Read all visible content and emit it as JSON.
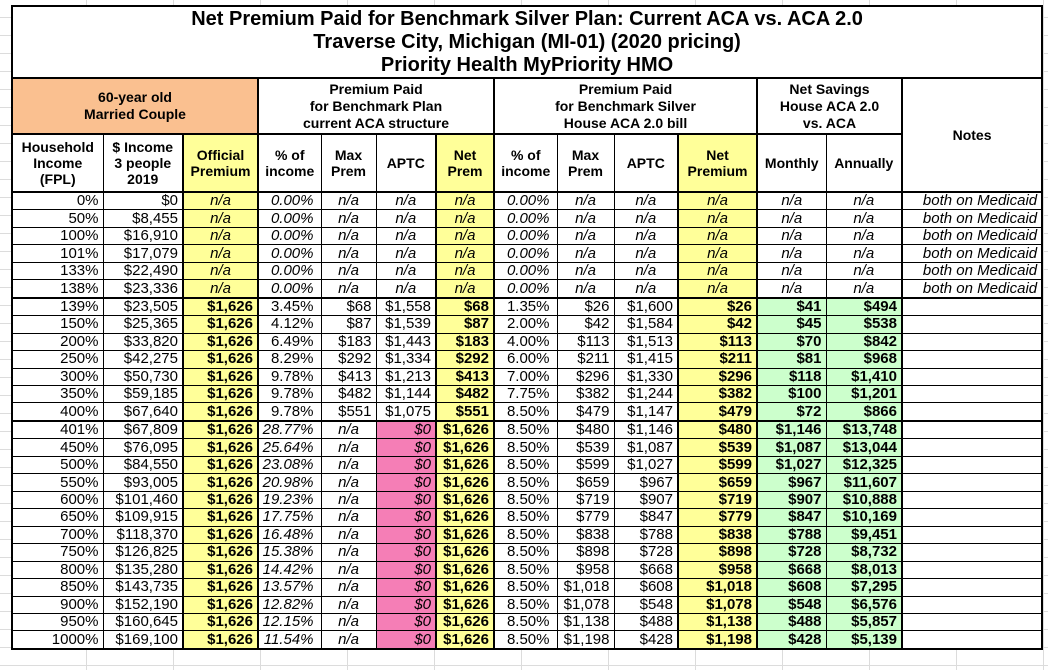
{
  "colors": {
    "header_orange": "#FAC090",
    "highlight_yellow": "#FFFF99",
    "savings_green": "#CCFFCC",
    "zero_aptc_pink": "#F57EB6",
    "grid_black": "#000000"
  },
  "chart_data": {
    "type": "table",
    "title": "Net Premium Paid for Benchmark Silver Plan: Current ACA vs. ACA 2.0",
    "subtitle": "Traverse City, Michigan (MI-01) (2020 pricing)",
    "plan_name": "Priority Health MyPriority HMO",
    "group_headers": {
      "household": "60-year old\nMarried Couple",
      "current_aca": "Premium Paid\nfor Benchmark Plan\ncurrent ACA structure",
      "aca20": "Premium Paid\nfor Benchmark Silver\nHouse ACA 2.0 bill",
      "net_savings": "Net Savings\nHouse ACA 2.0\nvs. ACA",
      "notes": "Notes"
    },
    "columns": [
      "Household\nIncome\n(FPL)",
      "$ Income\n3 people\n2019",
      "Official\nPremium",
      "% of\nincome",
      "Max\nPrem",
      "APTC",
      "Net\nPrem",
      "% of\nincome",
      "Max\nPrem",
      "APTC",
      "Net\nPremium",
      "Monthly",
      "Annually"
    ],
    "rows": [
      {
        "kind": "medicaid",
        "break": false,
        "cells": [
          "0%",
          "$0",
          "n/a",
          "0.00%",
          "n/a",
          "n/a",
          "n/a",
          "0.00%",
          "n/a",
          "n/a",
          "n/a",
          "n/a",
          "n/a",
          "both on Medicaid"
        ]
      },
      {
        "kind": "medicaid",
        "break": false,
        "cells": [
          "50%",
          "$8,455",
          "n/a",
          "0.00%",
          "n/a",
          "n/a",
          "n/a",
          "0.00%",
          "n/a",
          "n/a",
          "n/a",
          "n/a",
          "n/a",
          "both on Medicaid"
        ]
      },
      {
        "kind": "medicaid",
        "break": false,
        "cells": [
          "100%",
          "$16,910",
          "n/a",
          "0.00%",
          "n/a",
          "n/a",
          "n/a",
          "0.00%",
          "n/a",
          "n/a",
          "n/a",
          "n/a",
          "n/a",
          "both on Medicaid"
        ]
      },
      {
        "kind": "medicaid",
        "break": false,
        "cells": [
          "101%",
          "$17,079",
          "n/a",
          "0.00%",
          "n/a",
          "n/a",
          "n/a",
          "0.00%",
          "n/a",
          "n/a",
          "n/a",
          "n/a",
          "n/a",
          "both on Medicaid"
        ]
      },
      {
        "kind": "medicaid",
        "break": false,
        "cells": [
          "133%",
          "$22,490",
          "n/a",
          "0.00%",
          "n/a",
          "n/a",
          "n/a",
          "0.00%",
          "n/a",
          "n/a",
          "n/a",
          "n/a",
          "n/a",
          "both on Medicaid"
        ]
      },
      {
        "kind": "medicaid",
        "break": false,
        "cells": [
          "138%",
          "$23,336",
          "n/a",
          "0.00%",
          "n/a",
          "n/a",
          "n/a",
          "0.00%",
          "n/a",
          "n/a",
          "n/a",
          "n/a",
          "n/a",
          "both on Medicaid"
        ]
      },
      {
        "kind": "subsidized",
        "break": true,
        "cells": [
          "139%",
          "$23,505",
          "$1,626",
          "3.45%",
          "$68",
          "$1,558",
          "$68",
          "1.35%",
          "$26",
          "$1,600",
          "$26",
          "$41",
          "$494",
          ""
        ]
      },
      {
        "kind": "subsidized",
        "break": false,
        "cells": [
          "150%",
          "$25,365",
          "$1,626",
          "4.12%",
          "$87",
          "$1,539",
          "$87",
          "2.00%",
          "$42",
          "$1,584",
          "$42",
          "$45",
          "$538",
          ""
        ]
      },
      {
        "kind": "subsidized",
        "break": false,
        "cells": [
          "200%",
          "$33,820",
          "$1,626",
          "6.49%",
          "$183",
          "$1,443",
          "$183",
          "4.00%",
          "$113",
          "$1,513",
          "$113",
          "$70",
          "$842",
          ""
        ]
      },
      {
        "kind": "subsidized",
        "break": false,
        "cells": [
          "250%",
          "$42,275",
          "$1,626",
          "8.29%",
          "$292",
          "$1,334",
          "$292",
          "6.00%",
          "$211",
          "$1,415",
          "$211",
          "$81",
          "$968",
          ""
        ]
      },
      {
        "kind": "subsidized",
        "break": false,
        "cells": [
          "300%",
          "$50,730",
          "$1,626",
          "9.78%",
          "$413",
          "$1,213",
          "$413",
          "7.00%",
          "$296",
          "$1,330",
          "$296",
          "$118",
          "$1,410",
          ""
        ]
      },
      {
        "kind": "subsidized",
        "break": false,
        "cells": [
          "350%",
          "$59,185",
          "$1,626",
          "9.78%",
          "$482",
          "$1,144",
          "$482",
          "7.75%",
          "$382",
          "$1,244",
          "$382",
          "$100",
          "$1,201",
          ""
        ]
      },
      {
        "kind": "subsidized",
        "break": false,
        "cells": [
          "400%",
          "$67,640",
          "$1,626",
          "9.78%",
          "$551",
          "$1,075",
          "$551",
          "8.50%",
          "$479",
          "$1,147",
          "$479",
          "$72",
          "$866",
          ""
        ]
      },
      {
        "kind": "unsubsidized",
        "break": true,
        "cells": [
          "401%",
          "$67,809",
          "$1,626",
          "28.77%",
          "n/a",
          "$0",
          "$1,626",
          "8.50%",
          "$480",
          "$1,146",
          "$480",
          "$1,146",
          "$13,748",
          ""
        ]
      },
      {
        "kind": "unsubsidized",
        "break": false,
        "cells": [
          "450%",
          "$76,095",
          "$1,626",
          "25.64%",
          "n/a",
          "$0",
          "$1,626",
          "8.50%",
          "$539",
          "$1,087",
          "$539",
          "$1,087",
          "$13,044",
          ""
        ]
      },
      {
        "kind": "unsubsidized",
        "break": false,
        "cells": [
          "500%",
          "$84,550",
          "$1,626",
          "23.08%",
          "n/a",
          "$0",
          "$1,626",
          "8.50%",
          "$599",
          "$1,027",
          "$599",
          "$1,027",
          "$12,325",
          ""
        ]
      },
      {
        "kind": "unsubsidized",
        "break": false,
        "cells": [
          "550%",
          "$93,005",
          "$1,626",
          "20.98%",
          "n/a",
          "$0",
          "$1,626",
          "8.50%",
          "$659",
          "$967",
          "$659",
          "$967",
          "$11,607",
          ""
        ]
      },
      {
        "kind": "unsubsidized",
        "break": false,
        "cells": [
          "600%",
          "$101,460",
          "$1,626",
          "19.23%",
          "n/a",
          "$0",
          "$1,626",
          "8.50%",
          "$719",
          "$907",
          "$719",
          "$907",
          "$10,888",
          ""
        ]
      },
      {
        "kind": "unsubsidized",
        "break": false,
        "cells": [
          "650%",
          "$109,915",
          "$1,626",
          "17.75%",
          "n/a",
          "$0",
          "$1,626",
          "8.50%",
          "$779",
          "$847",
          "$779",
          "$847",
          "$10,169",
          ""
        ]
      },
      {
        "kind": "unsubsidized",
        "break": false,
        "cells": [
          "700%",
          "$118,370",
          "$1,626",
          "16.48%",
          "n/a",
          "$0",
          "$1,626",
          "8.50%",
          "$838",
          "$788",
          "$838",
          "$788",
          "$9,451",
          ""
        ]
      },
      {
        "kind": "unsubsidized",
        "break": false,
        "cells": [
          "750%",
          "$126,825",
          "$1,626",
          "15.38%",
          "n/a",
          "$0",
          "$1,626",
          "8.50%",
          "$898",
          "$728",
          "$898",
          "$728",
          "$8,732",
          ""
        ]
      },
      {
        "kind": "unsubsidized",
        "break": false,
        "cells": [
          "800%",
          "$135,280",
          "$1,626",
          "14.42%",
          "n/a",
          "$0",
          "$1,626",
          "8.50%",
          "$958",
          "$668",
          "$958",
          "$668",
          "$8,013",
          ""
        ]
      },
      {
        "kind": "unsubsidized",
        "break": false,
        "cells": [
          "850%",
          "$143,735",
          "$1,626",
          "13.57%",
          "n/a",
          "$0",
          "$1,626",
          "8.50%",
          "$1,018",
          "$608",
          "$1,018",
          "$608",
          "$7,295",
          ""
        ]
      },
      {
        "kind": "unsubsidized",
        "break": false,
        "cells": [
          "900%",
          "$152,190",
          "$1,626",
          "12.82%",
          "n/a",
          "$0",
          "$1,626",
          "8.50%",
          "$1,078",
          "$548",
          "$1,078",
          "$548",
          "$6,576",
          ""
        ]
      },
      {
        "kind": "unsubsidized",
        "break": false,
        "cells": [
          "950%",
          "$160,645",
          "$1,626",
          "12.15%",
          "n/a",
          "$0",
          "$1,626",
          "8.50%",
          "$1,138",
          "$488",
          "$1,138",
          "$488",
          "$5,857",
          ""
        ]
      },
      {
        "kind": "unsubsidized",
        "break": false,
        "cells": [
          "1000%",
          "$169,100",
          "$1,626",
          "11.54%",
          "n/a",
          "$0",
          "$1,626",
          "8.50%",
          "$1,198",
          "$428",
          "$1,198",
          "$428",
          "$5,139",
          ""
        ]
      }
    ]
  }
}
